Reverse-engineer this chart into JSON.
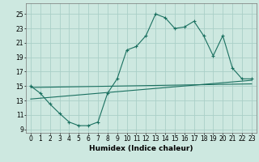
{
  "title": "",
  "xlabel": "Humidex (Indice chaleur)",
  "bg_color": "#cde8e0",
  "grid_color": "#aacfc7",
  "line_color": "#1a7060",
  "xlim": [
    -0.5,
    23.5
  ],
  "ylim": [
    8.5,
    26.5
  ],
  "xticks": [
    0,
    1,
    2,
    3,
    4,
    5,
    6,
    7,
    8,
    9,
    10,
    11,
    12,
    13,
    14,
    15,
    16,
    17,
    18,
    19,
    20,
    21,
    22,
    23
  ],
  "yticks": [
    9,
    11,
    13,
    15,
    17,
    19,
    21,
    23,
    25
  ],
  "line1_x": [
    0,
    1,
    2,
    3,
    4,
    5,
    6,
    7,
    8,
    9,
    10,
    11,
    12,
    13,
    14,
    15,
    16,
    17,
    18,
    19,
    20,
    21,
    22,
    23
  ],
  "line1_y": [
    15,
    14,
    12.5,
    11.2,
    10,
    9.5,
    9.5,
    10,
    14,
    16,
    20,
    20.5,
    22,
    25,
    24.5,
    23,
    23.2,
    24,
    22,
    19.2,
    22,
    17.5,
    16,
    16
  ],
  "line2_x": [
    0,
    23
  ],
  "line2_y": [
    13.2,
    15.8
  ],
  "line3_x": [
    0,
    23
  ],
  "line3_y": [
    14.8,
    15.3
  ],
  "tick_fontsize": 5.5,
  "xlabel_fontsize": 6.5
}
